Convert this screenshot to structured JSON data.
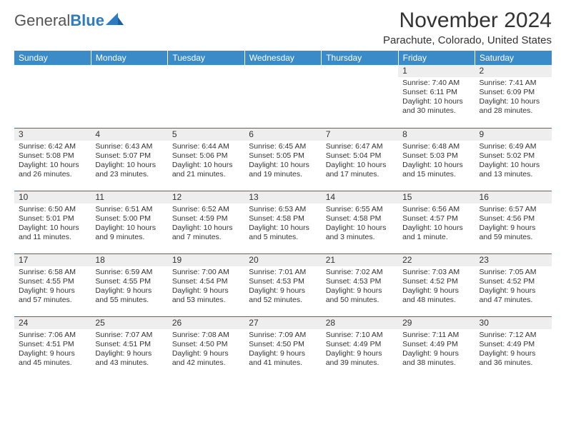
{
  "logo": {
    "word1": "General",
    "word2": "Blue"
  },
  "title": "November 2024",
  "location": "Parachute, Colorado, United States",
  "colors": {
    "header_bg": "#3b8bc9",
    "header_text": "#ffffff",
    "accent": "#2f7ac0",
    "cell_border": "#2f6fa8",
    "daynum_bg": "#eeeeee",
    "text": "#333333"
  },
  "day_headers": [
    "Sunday",
    "Monday",
    "Tuesday",
    "Wednesday",
    "Thursday",
    "Friday",
    "Saturday"
  ],
  "weeks": [
    [
      {
        "empty": true
      },
      {
        "empty": true
      },
      {
        "empty": true
      },
      {
        "empty": true
      },
      {
        "empty": true
      },
      {
        "num": "1",
        "sunrise": "Sunrise: 7:40 AM",
        "sunset": "Sunset: 6:11 PM",
        "daylight1": "Daylight: 10 hours",
        "daylight2": "and 30 minutes."
      },
      {
        "num": "2",
        "sunrise": "Sunrise: 7:41 AM",
        "sunset": "Sunset: 6:09 PM",
        "daylight1": "Daylight: 10 hours",
        "daylight2": "and 28 minutes."
      }
    ],
    [
      {
        "num": "3",
        "sunrise": "Sunrise: 6:42 AM",
        "sunset": "Sunset: 5:08 PM",
        "daylight1": "Daylight: 10 hours",
        "daylight2": "and 26 minutes."
      },
      {
        "num": "4",
        "sunrise": "Sunrise: 6:43 AM",
        "sunset": "Sunset: 5:07 PM",
        "daylight1": "Daylight: 10 hours",
        "daylight2": "and 23 minutes."
      },
      {
        "num": "5",
        "sunrise": "Sunrise: 6:44 AM",
        "sunset": "Sunset: 5:06 PM",
        "daylight1": "Daylight: 10 hours",
        "daylight2": "and 21 minutes."
      },
      {
        "num": "6",
        "sunrise": "Sunrise: 6:45 AM",
        "sunset": "Sunset: 5:05 PM",
        "daylight1": "Daylight: 10 hours",
        "daylight2": "and 19 minutes."
      },
      {
        "num": "7",
        "sunrise": "Sunrise: 6:47 AM",
        "sunset": "Sunset: 5:04 PM",
        "daylight1": "Daylight: 10 hours",
        "daylight2": "and 17 minutes."
      },
      {
        "num": "8",
        "sunrise": "Sunrise: 6:48 AM",
        "sunset": "Sunset: 5:03 PM",
        "daylight1": "Daylight: 10 hours",
        "daylight2": "and 15 minutes."
      },
      {
        "num": "9",
        "sunrise": "Sunrise: 6:49 AM",
        "sunset": "Sunset: 5:02 PM",
        "daylight1": "Daylight: 10 hours",
        "daylight2": "and 13 minutes."
      }
    ],
    [
      {
        "num": "10",
        "sunrise": "Sunrise: 6:50 AM",
        "sunset": "Sunset: 5:01 PM",
        "daylight1": "Daylight: 10 hours",
        "daylight2": "and 11 minutes."
      },
      {
        "num": "11",
        "sunrise": "Sunrise: 6:51 AM",
        "sunset": "Sunset: 5:00 PM",
        "daylight1": "Daylight: 10 hours",
        "daylight2": "and 9 minutes."
      },
      {
        "num": "12",
        "sunrise": "Sunrise: 6:52 AM",
        "sunset": "Sunset: 4:59 PM",
        "daylight1": "Daylight: 10 hours",
        "daylight2": "and 7 minutes."
      },
      {
        "num": "13",
        "sunrise": "Sunrise: 6:53 AM",
        "sunset": "Sunset: 4:58 PM",
        "daylight1": "Daylight: 10 hours",
        "daylight2": "and 5 minutes."
      },
      {
        "num": "14",
        "sunrise": "Sunrise: 6:55 AM",
        "sunset": "Sunset: 4:58 PM",
        "daylight1": "Daylight: 10 hours",
        "daylight2": "and 3 minutes."
      },
      {
        "num": "15",
        "sunrise": "Sunrise: 6:56 AM",
        "sunset": "Sunset: 4:57 PM",
        "daylight1": "Daylight: 10 hours",
        "daylight2": "and 1 minute."
      },
      {
        "num": "16",
        "sunrise": "Sunrise: 6:57 AM",
        "sunset": "Sunset: 4:56 PM",
        "daylight1": "Daylight: 9 hours",
        "daylight2": "and 59 minutes."
      }
    ],
    [
      {
        "num": "17",
        "sunrise": "Sunrise: 6:58 AM",
        "sunset": "Sunset: 4:55 PM",
        "daylight1": "Daylight: 9 hours",
        "daylight2": "and 57 minutes."
      },
      {
        "num": "18",
        "sunrise": "Sunrise: 6:59 AM",
        "sunset": "Sunset: 4:55 PM",
        "daylight1": "Daylight: 9 hours",
        "daylight2": "and 55 minutes."
      },
      {
        "num": "19",
        "sunrise": "Sunrise: 7:00 AM",
        "sunset": "Sunset: 4:54 PM",
        "daylight1": "Daylight: 9 hours",
        "daylight2": "and 53 minutes."
      },
      {
        "num": "20",
        "sunrise": "Sunrise: 7:01 AM",
        "sunset": "Sunset: 4:53 PM",
        "daylight1": "Daylight: 9 hours",
        "daylight2": "and 52 minutes."
      },
      {
        "num": "21",
        "sunrise": "Sunrise: 7:02 AM",
        "sunset": "Sunset: 4:53 PM",
        "daylight1": "Daylight: 9 hours",
        "daylight2": "and 50 minutes."
      },
      {
        "num": "22",
        "sunrise": "Sunrise: 7:03 AM",
        "sunset": "Sunset: 4:52 PM",
        "daylight1": "Daylight: 9 hours",
        "daylight2": "and 48 minutes."
      },
      {
        "num": "23",
        "sunrise": "Sunrise: 7:05 AM",
        "sunset": "Sunset: 4:52 PM",
        "daylight1": "Daylight: 9 hours",
        "daylight2": "and 47 minutes."
      }
    ],
    [
      {
        "num": "24",
        "sunrise": "Sunrise: 7:06 AM",
        "sunset": "Sunset: 4:51 PM",
        "daylight1": "Daylight: 9 hours",
        "daylight2": "and 45 minutes."
      },
      {
        "num": "25",
        "sunrise": "Sunrise: 7:07 AM",
        "sunset": "Sunset: 4:51 PM",
        "daylight1": "Daylight: 9 hours",
        "daylight2": "and 43 minutes."
      },
      {
        "num": "26",
        "sunrise": "Sunrise: 7:08 AM",
        "sunset": "Sunset: 4:50 PM",
        "daylight1": "Daylight: 9 hours",
        "daylight2": "and 42 minutes."
      },
      {
        "num": "27",
        "sunrise": "Sunrise: 7:09 AM",
        "sunset": "Sunset: 4:50 PM",
        "daylight1": "Daylight: 9 hours",
        "daylight2": "and 41 minutes."
      },
      {
        "num": "28",
        "sunrise": "Sunrise: 7:10 AM",
        "sunset": "Sunset: 4:49 PM",
        "daylight1": "Daylight: 9 hours",
        "daylight2": "and 39 minutes."
      },
      {
        "num": "29",
        "sunrise": "Sunrise: 7:11 AM",
        "sunset": "Sunset: 4:49 PM",
        "daylight1": "Daylight: 9 hours",
        "daylight2": "and 38 minutes."
      },
      {
        "num": "30",
        "sunrise": "Sunrise: 7:12 AM",
        "sunset": "Sunset: 4:49 PM",
        "daylight1": "Daylight: 9 hours",
        "daylight2": "and 36 minutes."
      }
    ]
  ]
}
